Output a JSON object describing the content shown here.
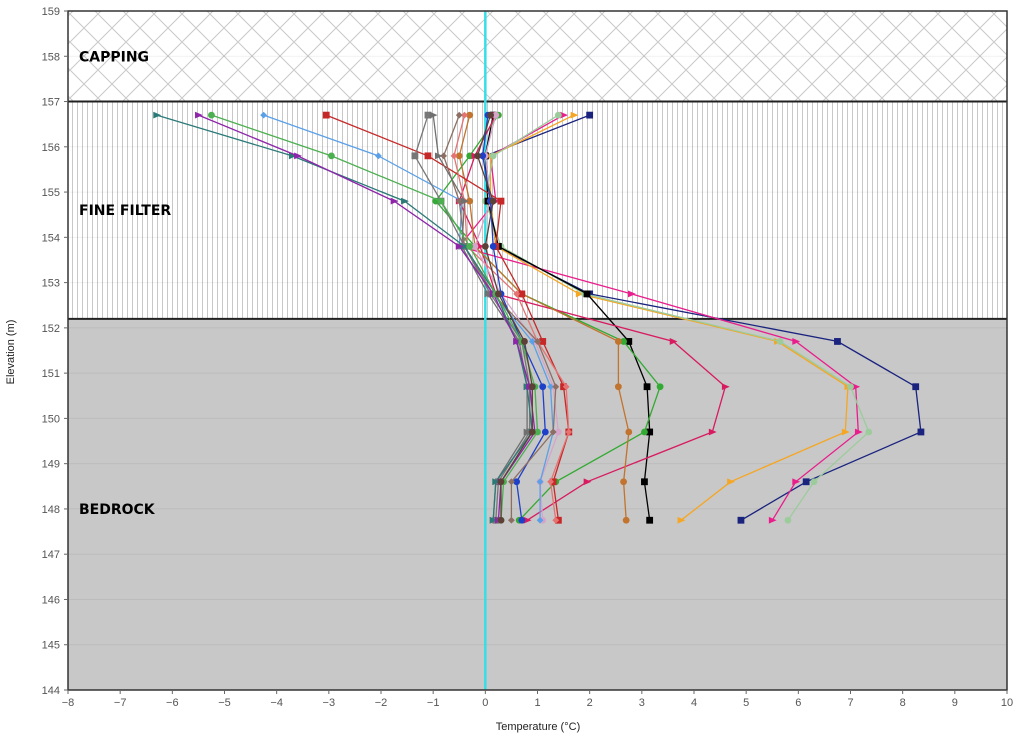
{
  "chart_data": {
    "type": "line",
    "title": "",
    "xlabel": "Temperature (°C)",
    "ylabel": "Elevation (m)",
    "xlim": [
      -8,
      10
    ],
    "ylim": [
      144,
      159
    ],
    "x_ticks": [
      "−8",
      "−7",
      "−6",
      "−5",
      "−4",
      "−3",
      "−2",
      "−1",
      "0",
      "1",
      "2",
      "3",
      "4",
      "5",
      "6",
      "7",
      "8",
      "9",
      "10"
    ],
    "y_ticks": [
      "144",
      "145",
      "146",
      "147",
      "148",
      "149",
      "150",
      "151",
      "152",
      "153",
      "154",
      "155",
      "156",
      "157",
      "158",
      "159"
    ],
    "zones": [
      {
        "label": "CAPPING",
        "from": 157,
        "to": 159,
        "pattern": "crosshatch",
        "label_y": 158
      },
      {
        "label": "FINE FILTER",
        "from": 152.2,
        "to": 157,
        "pattern": "vertical-lines",
        "label_y": 154.6
      },
      {
        "label": "BEDROCK",
        "from": 144,
        "to": 152.2,
        "pattern": "solid-gray",
        "label_y": 148
      }
    ],
    "reference_line": {
      "x": 0,
      "color": "#34e0e6"
    },
    "elevations": [
      156.7,
      155.8,
      154.8,
      153.8,
      152.75,
      151.7,
      150.7,
      149.7,
      148.6,
      147.75
    ],
    "series": [
      {
        "color": "#1a237e",
        "marker": "square",
        "values": [
          2.0,
          0.0,
          0.1,
          0.2,
          2.0,
          6.75,
          8.25,
          8.35,
          6.15,
          4.9
        ]
      },
      {
        "color": "#e91e8c",
        "marker": "triangle",
        "values": [
          1.5,
          0.1,
          0.2,
          -0.5,
          2.8,
          5.95,
          7.1,
          7.15,
          5.95,
          5.5
        ]
      },
      {
        "color": "#f5a623",
        "marker": "triangle",
        "values": [
          1.7,
          0.1,
          0.1,
          0.2,
          1.8,
          5.6,
          6.95,
          6.9,
          4.7,
          3.75
        ]
      },
      {
        "color": "#9ccc9c",
        "marker": "circle",
        "values": [
          1.4,
          0.15,
          0.0,
          0.3,
          1.9,
          5.65,
          7.0,
          7.35,
          6.3,
          5.8
        ]
      },
      {
        "color": "#000000",
        "marker": "square",
        "values": [
          0.15,
          0.0,
          0.05,
          0.25,
          1.95,
          2.75,
          3.1,
          3.15,
          3.05,
          3.15
        ]
      },
      {
        "color": "#33aa33",
        "marker": "circle",
        "values": [
          0.25,
          -0.3,
          -0.95,
          -0.2,
          0.7,
          2.65,
          3.35,
          3.05,
          1.35,
          0.65
        ]
      },
      {
        "color": "#d81b60",
        "marker": "triangle",
        "values": [
          0.2,
          -0.2,
          -0.5,
          -0.1,
          0.2,
          3.6,
          4.6,
          4.35,
          1.95,
          0.8
        ]
      },
      {
        "color": "#c2732d",
        "marker": "circle",
        "values": [
          -0.3,
          -0.5,
          -0.3,
          -0.2,
          0.7,
          2.55,
          2.55,
          2.75,
          2.65,
          2.7
        ]
      },
      {
        "color": "#c62828",
        "marker": "square",
        "values": [
          -3.05,
          -1.1,
          0.3,
          0.2,
          0.7,
          1.1,
          1.5,
          1.6,
          1.3,
          1.4
        ]
      },
      {
        "color": "#e57373",
        "marker": "diamond",
        "values": [
          -0.4,
          -0.6,
          -0.4,
          -0.35,
          0.6,
          1.0,
          1.55,
          1.6,
          1.25,
          1.35
        ]
      },
      {
        "color": "#d6a5c9",
        "marker": "circle",
        "values": [
          0.2,
          0.0,
          0.1,
          -0.2,
          0.3,
          0.95,
          1.3,
          1.4,
          1.05,
          1.1
        ]
      },
      {
        "color": "#5aa0e8",
        "marker": "diamond",
        "values": [
          -4.25,
          -2.05,
          -0.45,
          -0.5,
          0.15,
          0.9,
          1.25,
          1.3,
          1.05,
          1.05
        ]
      },
      {
        "color": "#1e40c8",
        "marker": "circle",
        "values": [
          0.05,
          -0.05,
          0.1,
          0.15,
          0.3,
          0.7,
          1.1,
          1.15,
          0.6,
          0.7
        ]
      },
      {
        "color": "#8d6e63",
        "marker": "diamond",
        "values": [
          -0.5,
          -0.8,
          -0.5,
          -0.4,
          0.15,
          1.0,
          1.35,
          1.3,
          0.5,
          0.5
        ]
      },
      {
        "color": "#777777",
        "marker": "square",
        "values": [
          -1.1,
          -1.35,
          -0.85,
          -0.4,
          0.1,
          0.7,
          0.85,
          0.85,
          0.25,
          0.2
        ]
      },
      {
        "color": "#707070",
        "marker": "triangle",
        "values": [
          -1.0,
          -0.9,
          -0.4,
          -0.45,
          0.05,
          0.65,
          0.8,
          0.8,
          0.2,
          0.15
        ]
      },
      {
        "color": "#2b7a78",
        "marker": "triangle",
        "values": [
          -6.3,
          -3.7,
          -1.55,
          -0.4,
          0.2,
          0.6,
          0.8,
          0.9,
          0.2,
          0.15
        ]
      },
      {
        "color": "#8e24aa",
        "marker": "triangle",
        "values": [
          -5.5,
          -3.6,
          -1.75,
          -0.5,
          0.15,
          0.6,
          0.85,
          0.95,
          0.3,
          0.25
        ]
      },
      {
        "color": "#4caf50",
        "marker": "circle",
        "values": [
          -5.25,
          -2.95,
          -0.85,
          -0.3,
          0.2,
          0.7,
          0.95,
          1.0,
          0.35,
          0.3
        ]
      },
      {
        "color": "#5d4037",
        "marker": "circle",
        "values": [
          0.1,
          -0.15,
          0.15,
          0.0,
          0.25,
          0.75,
          0.9,
          0.9,
          0.3,
          0.3
        ]
      }
    ]
  }
}
